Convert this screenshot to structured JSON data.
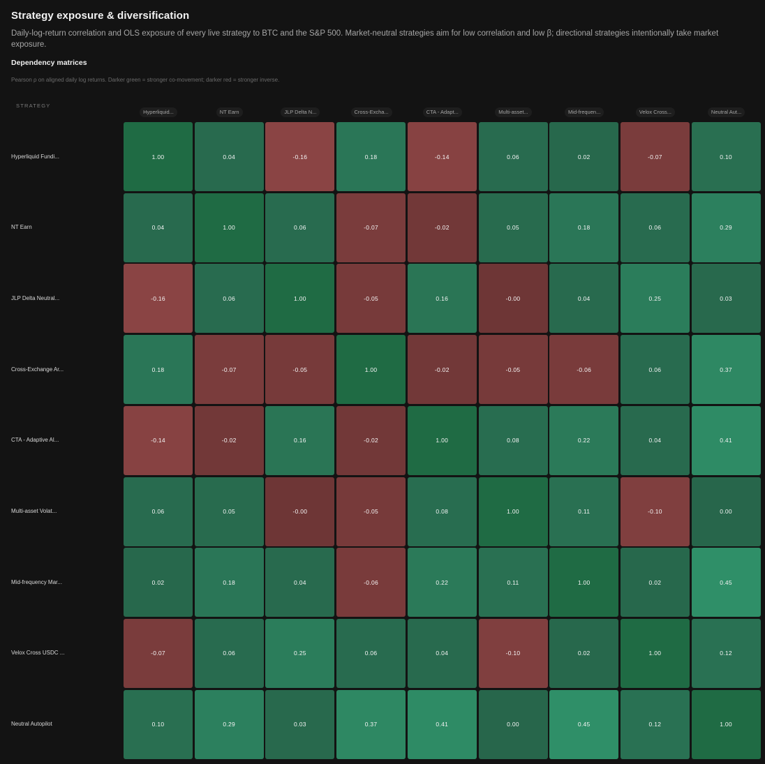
{
  "header": {
    "title": "Strategy exposure & diversification",
    "description": "Daily-log-return correlation and OLS exposure of every live strategy to BTC and the S&P 500. Market-neutral strategies aim for low correlation and low β; directional strategies intentionally take market exposure."
  },
  "section": {
    "title": "Dependency matrices",
    "note": "Pearson ρ on aligned daily log returns. Darker green = stronger co-movement; darker red = stronger inverse."
  },
  "colors": {
    "positive_weak": "#27664b",
    "positive_mid": "#2f8f68",
    "diagonal": "#1f6b44",
    "negative_weak": "#6e3636",
    "negative_strong": "#8a4444"
  },
  "chart_data": {
    "type": "heatmap",
    "row_axis_label": "STRATEGY",
    "column_labels": [
      "Hyperliquid...",
      "NT Earn",
      "JLP Delta N...",
      "Cross-Excha...",
      "CTA - Adapt...",
      "Multi-asset...",
      "Mid-frequen...",
      "Velox Cross...",
      "Neutral Aut..."
    ],
    "row_labels": [
      "Hyperliquid Fundi...",
      "NT Earn",
      "JLP Delta Neutral...",
      "Cross-Exchange Ar...",
      "CTA - Adaptive Al...",
      "Multi-asset Volat...",
      "Mid-frequency Mar...",
      "Velox Cross USDC ...",
      "Neutral Autopilot"
    ],
    "values": [
      [
        1.0,
        0.04,
        -0.16,
        0.18,
        -0.14,
        0.06,
        0.02,
        -0.07,
        0.1
      ],
      [
        0.04,
        1.0,
        0.06,
        -0.07,
        -0.02,
        0.05,
        0.18,
        0.06,
        0.29
      ],
      [
        -0.16,
        0.06,
        1.0,
        -0.05,
        0.16,
        -0.0,
        0.04,
        0.25,
        0.03
      ],
      [
        0.18,
        -0.07,
        -0.05,
        1.0,
        -0.02,
        -0.05,
        -0.06,
        0.06,
        0.37
      ],
      [
        -0.14,
        -0.02,
        0.16,
        -0.02,
        1.0,
        0.08,
        0.22,
        0.04,
        0.41
      ],
      [
        0.06,
        0.05,
        -0.0,
        -0.05,
        0.08,
        1.0,
        0.11,
        -0.1,
        0.0
      ],
      [
        0.02,
        0.18,
        0.04,
        -0.06,
        0.22,
        0.11,
        1.0,
        0.02,
        0.45
      ],
      [
        -0.07,
        0.06,
        0.25,
        0.06,
        0.04,
        -0.1,
        0.02,
        1.0,
        0.12
      ],
      [
        0.1,
        0.29,
        0.03,
        0.37,
        0.41,
        0.0,
        0.45,
        0.12,
        1.0
      ]
    ],
    "value_labels": [
      [
        "1.00",
        "0.04",
        "-0.16",
        "0.18",
        "-0.14",
        "0.06",
        "0.02",
        "-0.07",
        "0.10"
      ],
      [
        "0.04",
        "1.00",
        "0.06",
        "-0.07",
        "-0.02",
        "0.05",
        "0.18",
        "0.06",
        "0.29"
      ],
      [
        "-0.16",
        "0.06",
        "1.00",
        "-0.05",
        "0.16",
        "-0.00",
        "0.04",
        "0.25",
        "0.03"
      ],
      [
        "0.18",
        "-0.07",
        "-0.05",
        "1.00",
        "-0.02",
        "-0.05",
        "-0.06",
        "0.06",
        "0.37"
      ],
      [
        "-0.14",
        "-0.02",
        "0.16",
        "-0.02",
        "1.00",
        "0.08",
        "0.22",
        "0.04",
        "0.41"
      ],
      [
        "0.06",
        "0.05",
        "-0.00",
        "-0.05",
        "0.08",
        "1.00",
        "0.11",
        "-0.10",
        "0.00"
      ],
      [
        "0.02",
        "0.18",
        "0.04",
        "-0.06",
        "0.22",
        "0.11",
        "1.00",
        "0.02",
        "0.45"
      ],
      [
        "-0.07",
        "0.06",
        "0.25",
        "0.06",
        "0.04",
        "-0.10",
        "0.02",
        "1.00",
        "0.12"
      ],
      [
        "0.10",
        "0.29",
        "0.03",
        "0.37",
        "0.41",
        "0.00",
        "0.45",
        "0.12",
        "1.00"
      ]
    ]
  }
}
